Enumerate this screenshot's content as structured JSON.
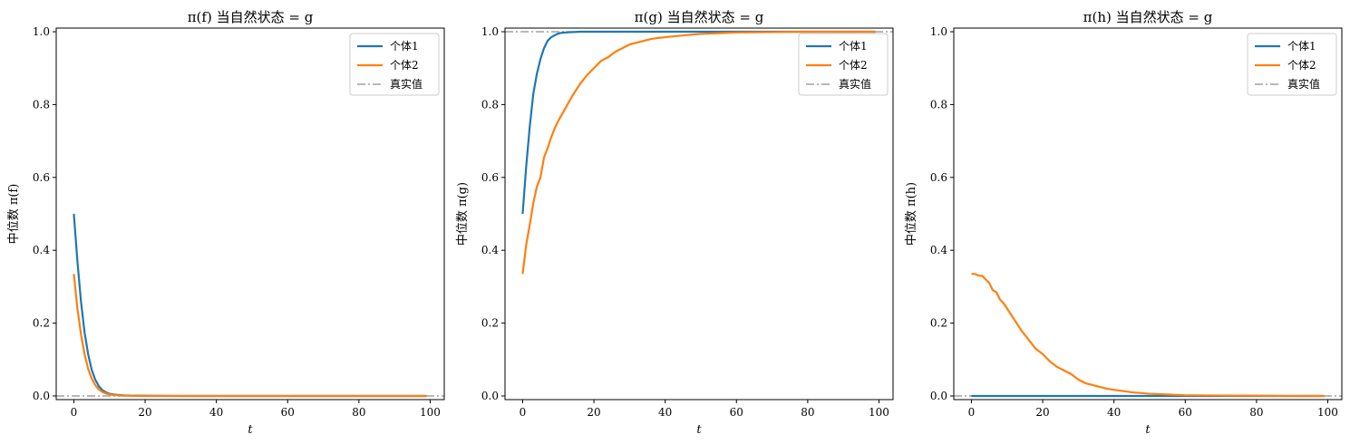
{
  "colors": {
    "individual1": "#1f77b4",
    "individual2": "#ff7f0e",
    "truth": "#a0a0a0",
    "frame": "#000000",
    "legend_border": "#cccccc"
  },
  "chart_data": [
    {
      "type": "line",
      "title": "π(f) 当自然状态 = g",
      "xlabel": "t",
      "ylabel": "中位数 π(f)",
      "xlim": [
        -4.95,
        103.95
      ],
      "ylim": [
        -0.01,
        1.01
      ],
      "xticks": [
        0,
        20,
        40,
        60,
        80,
        100
      ],
      "xtick_labels": [
        "0",
        "20",
        "40",
        "60",
        "80",
        "100"
      ],
      "yticks": [
        0.0,
        0.2,
        0.4,
        0.6,
        0.8,
        1.0
      ],
      "ytick_labels": [
        "0.0",
        "0.2",
        "0.4",
        "0.6",
        "0.8",
        "1.0"
      ],
      "legend": "upper-right",
      "grid": false,
      "series": [
        {
          "name": "个体1",
          "color": "individual1",
          "x": [
            0,
            1,
            2,
            3,
            4,
            5,
            6,
            7,
            8,
            9,
            10,
            12,
            14,
            16,
            20,
            30,
            40,
            60,
            80,
            99
          ],
          "y": [
            0.5,
            0.37,
            0.26,
            0.175,
            0.115,
            0.072,
            0.045,
            0.027,
            0.016,
            0.01,
            0.006,
            0.003,
            0.0015,
            0.001,
            0.0005,
            0,
            0,
            0,
            0,
            0
          ]
        },
        {
          "name": "个体2",
          "color": "individual2",
          "x": [
            0,
            1,
            2,
            3,
            4,
            5,
            6,
            7,
            8,
            9,
            10,
            12,
            14,
            16,
            20,
            30,
            40,
            60,
            80,
            99
          ],
          "y": [
            0.335,
            0.24,
            0.17,
            0.115,
            0.075,
            0.048,
            0.03,
            0.018,
            0.011,
            0.007,
            0.004,
            0.002,
            0.001,
            0.0005,
            0,
            0,
            0,
            0,
            0,
            0
          ]
        }
      ],
      "reference_line": {
        "name": "真实值",
        "y": 0.0,
        "color": "truth",
        "style": "dash-dot"
      }
    },
    {
      "type": "line",
      "title": "π(g) 当自然状态 = g",
      "xlabel": "t",
      "ylabel": "中位数 π(g)",
      "xlim": [
        -4.95,
        103.95
      ],
      "ylim": [
        -0.01,
        1.01
      ],
      "xticks": [
        0,
        20,
        40,
        60,
        80,
        100
      ],
      "xtick_labels": [
        "0",
        "20",
        "40",
        "60",
        "80",
        "100"
      ],
      "yticks": [
        0.0,
        0.2,
        0.4,
        0.6,
        0.8,
        1.0
      ],
      "ytick_labels": [
        "0.0",
        "0.2",
        "0.4",
        "0.6",
        "0.8",
        "1.0"
      ],
      "legend": "upper-right",
      "grid": false,
      "series": [
        {
          "name": "个体1",
          "color": "individual1",
          "x": [
            0,
            1,
            2,
            3,
            4,
            5,
            6,
            7,
            8,
            9,
            10,
            11,
            12,
            14,
            16,
            20,
            30,
            40,
            60,
            80,
            99
          ],
          "y": [
            0.5,
            0.63,
            0.74,
            0.83,
            0.885,
            0.925,
            0.955,
            0.975,
            0.985,
            0.99,
            0.995,
            0.997,
            0.998,
            0.999,
            1.0,
            1.0,
            1.0,
            1.0,
            1.0,
            1.0,
            1.0
          ]
        },
        {
          "name": "个体2",
          "color": "individual2",
          "x": [
            0,
            1,
            2,
            3,
            4,
            5,
            6,
            7,
            8,
            9,
            10,
            12,
            14,
            16,
            18,
            20,
            22,
            24,
            26,
            28,
            30,
            32,
            34,
            36,
            38,
            40,
            45,
            50,
            55,
            60,
            70,
            80,
            90,
            99
          ],
          "y": [
            0.335,
            0.415,
            0.47,
            0.53,
            0.575,
            0.6,
            0.655,
            0.68,
            0.71,
            0.735,
            0.755,
            0.79,
            0.825,
            0.855,
            0.88,
            0.9,
            0.92,
            0.93,
            0.945,
            0.955,
            0.965,
            0.97,
            0.975,
            0.98,
            0.983,
            0.985,
            0.99,
            0.994,
            0.996,
            0.998,
            0.999,
            1.0,
            1.0,
            1.0
          ]
        }
      ],
      "reference_line": {
        "name": "真实值",
        "y": 1.0,
        "color": "truth",
        "style": "dash-dot"
      }
    },
    {
      "type": "line",
      "title": "π(h) 当自然状态 = g",
      "xlabel": "t",
      "ylabel": "中位数 π(h)",
      "xlim": [
        -4.95,
        103.95
      ],
      "ylim": [
        -0.01,
        1.01
      ],
      "xticks": [
        0,
        20,
        40,
        60,
        80,
        100
      ],
      "xtick_labels": [
        "0",
        "20",
        "40",
        "60",
        "80",
        "100"
      ],
      "yticks": [
        0.0,
        0.2,
        0.4,
        0.6,
        0.8,
        1.0
      ],
      "ytick_labels": [
        "0.0",
        "0.2",
        "0.4",
        "0.6",
        "0.8",
        "1.0"
      ],
      "legend": "upper-right",
      "grid": false,
      "series": [
        {
          "name": "个体1",
          "color": "individual1",
          "x": [
            0,
            20,
            40,
            60,
            80,
            99
          ],
          "y": [
            0,
            0,
            0,
            0,
            0,
            0
          ]
        },
        {
          "name": "个体2",
          "color": "individual2",
          "x": [
            0,
            1,
            2,
            3,
            4,
            5,
            6,
            7,
            8,
            9,
            10,
            12,
            14,
            16,
            18,
            20,
            22,
            24,
            26,
            28,
            30,
            32,
            34,
            36,
            38,
            40,
            45,
            50,
            55,
            60,
            70,
            80,
            90,
            99
          ],
          "y": [
            0.335,
            0.335,
            0.33,
            0.33,
            0.32,
            0.31,
            0.29,
            0.285,
            0.265,
            0.255,
            0.24,
            0.21,
            0.18,
            0.155,
            0.13,
            0.115,
            0.095,
            0.08,
            0.07,
            0.06,
            0.045,
            0.035,
            0.03,
            0.025,
            0.02,
            0.017,
            0.01,
            0.006,
            0.004,
            0.002,
            0.001,
            0.0005,
            0,
            0
          ]
        }
      ],
      "reference_line": {
        "name": "真实值",
        "y": 0.0,
        "color": "truth",
        "style": "dash-dot"
      }
    }
  ]
}
